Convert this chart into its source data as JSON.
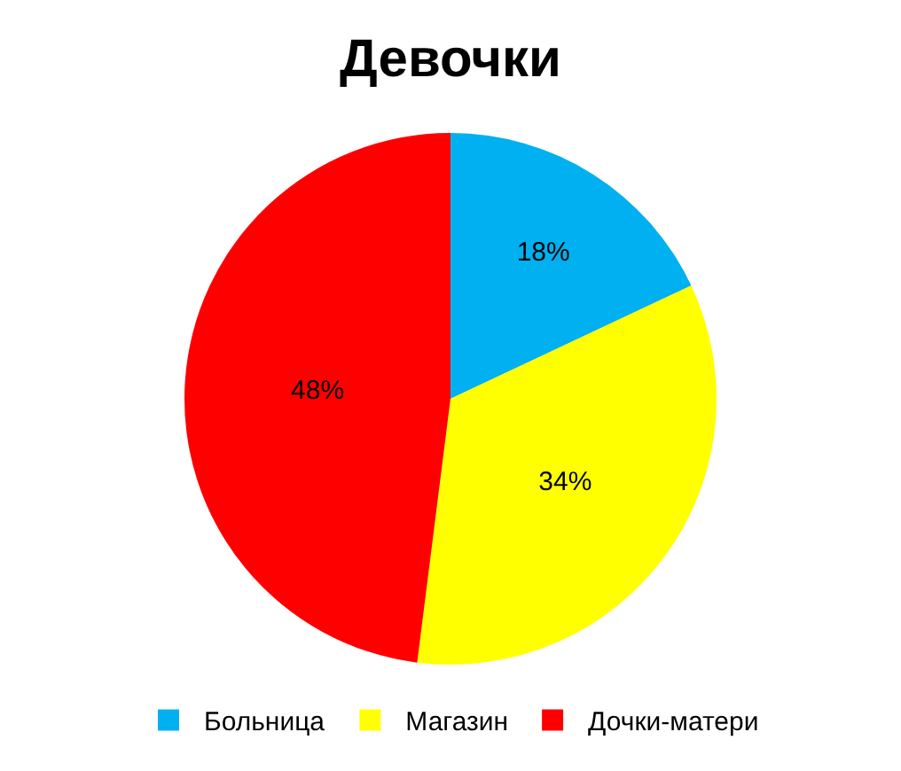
{
  "chart_data": {
    "type": "pie",
    "title": "Девочки",
    "categories": [
      "Больница",
      "Магазин",
      "Дочки-матери"
    ],
    "values": [
      18,
      34,
      48
    ],
    "colors": [
      "#00b0f0",
      "#ffff00",
      "#ff0000"
    ],
    "value_labels": [
      "18%",
      "34%",
      "48%"
    ],
    "legend": "bottom"
  }
}
